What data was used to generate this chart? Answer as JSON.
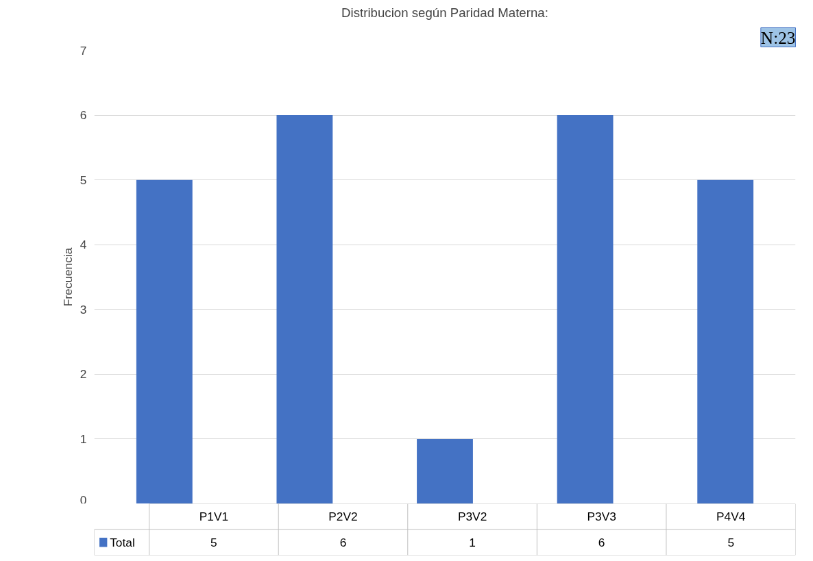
{
  "chart_data": {
    "type": "bar",
    "title": "Distribucion según Paridad Materna:",
    "ylabel": "Frecuencia",
    "categories": [
      "P1V1",
      "P2V2",
      "P3V2",
      "P3V3",
      "P4V4"
    ],
    "series": [
      {
        "name": "Total",
        "color": "#4472c4",
        "values": [
          5,
          6,
          1,
          6,
          5
        ]
      }
    ],
    "ylim": [
      0,
      7
    ],
    "yticks": [
      0,
      1,
      2,
      3,
      4,
      5,
      6,
      7
    ],
    "grid": "y",
    "legend": "bottom",
    "data_labels": true,
    "annotations": [
      "N:23"
    ]
  }
}
